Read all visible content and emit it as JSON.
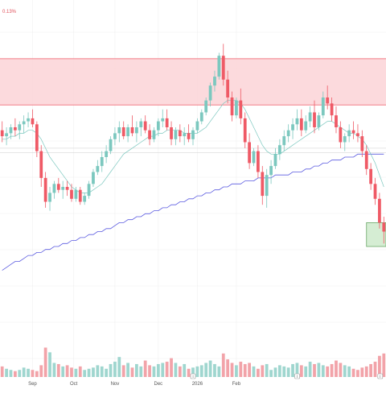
{
  "header": {
    "corner_text": "0.13%"
  },
  "colors": {
    "up": "#7cc8bf",
    "down": "#ef5a66",
    "vol_up": "#9fd6cf",
    "vol_down": "#f2a3a9",
    "ma_short": "#7cc8bf",
    "ma_long": "#5a5ae0",
    "resistance_zone": "#fbd4d7",
    "resistance_line": "#ef5a66",
    "support_zone": "#d5edd3",
    "support_line": "#6aa868",
    "grid": "#f0f0f0",
    "hline": "#d8d8d8"
  },
  "chart_data": {
    "type": "candlestick",
    "title": "",
    "x_tick_labels": [
      "Sep",
      "Oct",
      "Nov",
      "Dec",
      "2026",
      "Feb"
    ],
    "ylim": [
      0,
      100
    ],
    "candles": [
      {
        "o": 59,
        "h": 62,
        "l": 55,
        "c": 57
      },
      {
        "o": 57,
        "h": 60,
        "l": 54,
        "c": 58
      },
      {
        "o": 58,
        "h": 61,
        "l": 56,
        "c": 60
      },
      {
        "o": 60,
        "h": 63,
        "l": 57,
        "c": 59
      },
      {
        "o": 59,
        "h": 62,
        "l": 56,
        "c": 61
      },
      {
        "o": 61,
        "h": 64,
        "l": 58,
        "c": 62
      },
      {
        "o": 62,
        "h": 65,
        "l": 60,
        "c": 63
      },
      {
        "o": 63,
        "h": 66,
        "l": 60,
        "c": 61
      },
      {
        "o": 61,
        "h": 62,
        "l": 50,
        "c": 52
      },
      {
        "o": 52,
        "h": 54,
        "l": 40,
        "c": 43
      },
      {
        "o": 43,
        "h": 45,
        "l": 33,
        "c": 35
      },
      {
        "o": 35,
        "h": 40,
        "l": 32,
        "c": 38
      },
      {
        "o": 38,
        "h": 42,
        "l": 36,
        "c": 41
      },
      {
        "o": 41,
        "h": 43,
        "l": 38,
        "c": 39
      },
      {
        "o": 39,
        "h": 42,
        "l": 36,
        "c": 40
      },
      {
        "o": 40,
        "h": 42,
        "l": 37,
        "c": 39
      },
      {
        "o": 39,
        "h": 41,
        "l": 35,
        "c": 36
      },
      {
        "o": 36,
        "h": 40,
        "l": 35,
        "c": 39
      },
      {
        "o": 39,
        "h": 40,
        "l": 34,
        "c": 35
      },
      {
        "o": 35,
        "h": 38,
        "l": 34,
        "c": 37
      },
      {
        "o": 37,
        "h": 42,
        "l": 36,
        "c": 41
      },
      {
        "o": 41,
        "h": 46,
        "l": 40,
        "c": 45
      },
      {
        "o": 45,
        "h": 49,
        "l": 44,
        "c": 47
      },
      {
        "o": 47,
        "h": 52,
        "l": 45,
        "c": 50
      },
      {
        "o": 50,
        "h": 54,
        "l": 48,
        "c": 52
      },
      {
        "o": 52,
        "h": 57,
        "l": 51,
        "c": 56
      },
      {
        "o": 56,
        "h": 60,
        "l": 54,
        "c": 58
      },
      {
        "o": 58,
        "h": 62,
        "l": 55,
        "c": 60
      },
      {
        "o": 60,
        "h": 62,
        "l": 56,
        "c": 57
      },
      {
        "o": 57,
        "h": 61,
        "l": 55,
        "c": 60
      },
      {
        "o": 60,
        "h": 64,
        "l": 57,
        "c": 58
      },
      {
        "o": 58,
        "h": 62,
        "l": 55,
        "c": 60
      },
      {
        "o": 60,
        "h": 63,
        "l": 57,
        "c": 62
      },
      {
        "o": 62,
        "h": 64,
        "l": 58,
        "c": 59
      },
      {
        "o": 59,
        "h": 61,
        "l": 54,
        "c": 56
      },
      {
        "o": 56,
        "h": 60,
        "l": 55,
        "c": 59
      },
      {
        "o": 59,
        "h": 63,
        "l": 57,
        "c": 62
      },
      {
        "o": 62,
        "h": 66,
        "l": 60,
        "c": 63
      },
      {
        "o": 63,
        "h": 66,
        "l": 59,
        "c": 60
      },
      {
        "o": 60,
        "h": 62,
        "l": 54,
        "c": 56
      },
      {
        "o": 56,
        "h": 60,
        "l": 54,
        "c": 59
      },
      {
        "o": 59,
        "h": 61,
        "l": 55,
        "c": 57
      },
      {
        "o": 57,
        "h": 60,
        "l": 54,
        "c": 58
      },
      {
        "o": 58,
        "h": 61,
        "l": 55,
        "c": 56
      },
      {
        "o": 56,
        "h": 60,
        "l": 54,
        "c": 59
      },
      {
        "o": 59,
        "h": 63,
        "l": 58,
        "c": 62
      },
      {
        "o": 62,
        "h": 66,
        "l": 61,
        "c": 65
      },
      {
        "o": 65,
        "h": 70,
        "l": 64,
        "c": 69
      },
      {
        "o": 69,
        "h": 75,
        "l": 67,
        "c": 74
      },
      {
        "o": 74,
        "h": 79,
        "l": 72,
        "c": 77
      },
      {
        "o": 77,
        "h": 85,
        "l": 76,
        "c": 84
      },
      {
        "o": 84,
        "h": 88,
        "l": 74,
        "c": 76
      },
      {
        "o": 76,
        "h": 79,
        "l": 68,
        "c": 70
      },
      {
        "o": 70,
        "h": 72,
        "l": 62,
        "c": 64
      },
      {
        "o": 64,
        "h": 70,
        "l": 63,
        "c": 69
      },
      {
        "o": 69,
        "h": 73,
        "l": 61,
        "c": 63
      },
      {
        "o": 63,
        "h": 65,
        "l": 53,
        "c": 55
      },
      {
        "o": 55,
        "h": 58,
        "l": 46,
        "c": 48
      },
      {
        "o": 48,
        "h": 53,
        "l": 47,
        "c": 52
      },
      {
        "o": 52,
        "h": 54,
        "l": 43,
        "c": 45
      },
      {
        "o": 45,
        "h": 47,
        "l": 34,
        "c": 37
      },
      {
        "o": 37,
        "h": 46,
        "l": 33,
        "c": 44
      },
      {
        "o": 44,
        "h": 49,
        "l": 41,
        "c": 47
      },
      {
        "o": 47,
        "h": 53,
        "l": 46,
        "c": 51
      },
      {
        "o": 51,
        "h": 56,
        "l": 49,
        "c": 54
      },
      {
        "o": 54,
        "h": 59,
        "l": 52,
        "c": 57
      },
      {
        "o": 57,
        "h": 61,
        "l": 55,
        "c": 59
      },
      {
        "o": 59,
        "h": 63,
        "l": 56,
        "c": 61
      },
      {
        "o": 61,
        "h": 66,
        "l": 59,
        "c": 63
      },
      {
        "o": 63,
        "h": 66,
        "l": 57,
        "c": 59
      },
      {
        "o": 59,
        "h": 64,
        "l": 58,
        "c": 62
      },
      {
        "o": 62,
        "h": 67,
        "l": 60,
        "c": 65
      },
      {
        "o": 65,
        "h": 69,
        "l": 58,
        "c": 60
      },
      {
        "o": 60,
        "h": 65,
        "l": 59,
        "c": 64
      },
      {
        "o": 64,
        "h": 72,
        "l": 63,
        "c": 70
      },
      {
        "o": 70,
        "h": 74,
        "l": 66,
        "c": 68
      },
      {
        "o": 68,
        "h": 70,
        "l": 62,
        "c": 64
      },
      {
        "o": 64,
        "h": 67,
        "l": 58,
        "c": 60
      },
      {
        "o": 60,
        "h": 62,
        "l": 53,
        "c": 55
      },
      {
        "o": 55,
        "h": 58,
        "l": 52,
        "c": 57
      },
      {
        "o": 57,
        "h": 61,
        "l": 55,
        "c": 59
      },
      {
        "o": 59,
        "h": 62,
        "l": 56,
        "c": 58
      },
      {
        "o": 58,
        "h": 61,
        "l": 55,
        "c": 57
      },
      {
        "o": 57,
        "h": 59,
        "l": 50,
        "c": 52
      },
      {
        "o": 52,
        "h": 54,
        "l": 44,
        "c": 46
      },
      {
        "o": 46,
        "h": 48,
        "l": 39,
        "c": 41
      },
      {
        "o": 41,
        "h": 43,
        "l": 34,
        "c": 36
      },
      {
        "o": 36,
        "h": 38,
        "l": 26,
        "c": 28
      },
      {
        "o": 28,
        "h": 30,
        "l": 21,
        "c": 25
      }
    ],
    "ma_short": [
      56,
      56,
      57,
      57,
      58,
      58,
      59,
      59,
      58,
      56,
      53,
      50,
      48,
      46,
      44,
      42,
      40,
      39,
      38,
      38,
      38,
      39,
      40,
      41,
      43,
      45,
      47,
      49,
      51,
      52,
      53,
      54,
      55,
      56,
      57,
      57,
      58,
      58,
      59,
      59,
      59,
      59,
      58,
      58,
      58,
      58,
      59,
      60,
      62,
      64,
      66,
      68,
      69,
      69,
      69,
      68,
      66,
      63,
      60,
      57,
      54,
      52,
      51,
      51,
      51,
      52,
      53,
      54,
      55,
      56,
      57,
      58,
      59,
      60,
      61,
      62,
      62,
      61,
      60,
      59,
      58,
      58,
      57,
      56,
      54,
      51,
      48,
      44,
      40
    ],
    "ma_long": [
      12,
      13,
      14,
      15,
      15,
      16,
      17,
      17,
      18,
      18,
      19,
      19,
      20,
      20,
      21,
      21,
      22,
      22,
      23,
      23,
      24,
      24,
      25,
      25,
      26,
      26,
      27,
      28,
      28,
      29,
      29,
      30,
      30,
      31,
      31,
      32,
      32,
      33,
      33,
      34,
      34,
      35,
      35,
      36,
      36,
      37,
      37,
      38,
      38,
      39,
      39,
      40,
      40,
      41,
      41,
      41,
      42,
      42,
      42,
      43,
      43,
      43,
      43,
      44,
      44,
      44,
      44,
      45,
      45,
      45,
      46,
      46,
      47,
      47,
      48,
      48,
      49,
      49,
      49,
      50,
      50,
      50,
      51,
      51,
      51,
      51,
      51,
      51,
      51
    ],
    "volume_max": 100,
    "volumes": [
      18,
      14,
      12,
      10,
      12,
      16,
      14,
      12,
      10,
      20,
      50,
      42,
      24,
      22,
      18,
      20,
      16,
      14,
      18,
      12,
      14,
      16,
      20,
      18,
      14,
      22,
      26,
      34,
      20,
      24,
      16,
      22,
      18,
      28,
      20,
      18,
      22,
      24,
      26,
      32,
      24,
      18,
      22,
      14,
      16,
      18,
      20,
      24,
      28,
      22,
      18,
      40,
      30,
      24,
      20,
      26,
      22,
      24,
      18,
      14,
      20,
      22,
      12,
      16,
      20,
      18,
      16,
      22,
      24,
      20,
      18,
      26,
      22,
      24,
      20,
      18,
      22,
      28,
      24,
      20,
      18,
      14,
      12,
      16,
      18,
      22,
      26,
      36,
      40
    ],
    "resistance_zone": [
      67.5,
      83
    ],
    "support_zone": [
      20,
      28
    ],
    "reference_lines": [
      51.5,
      53
    ],
    "x_tick_positions": [
      7.5,
      17,
      26.5,
      36.5,
      45.5,
      54.5
    ]
  },
  "markers": [
    "i",
    "i",
    "i"
  ]
}
